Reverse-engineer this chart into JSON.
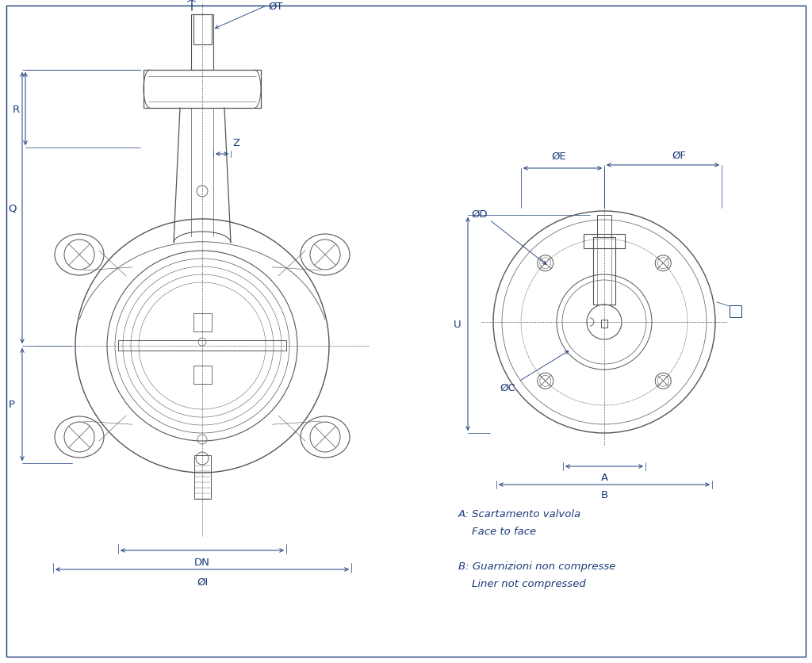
{
  "bg_color": "#ffffff",
  "draw_color": "#1a3a6b",
  "body_edge": "#555555",
  "dim_color": "#1a3a7a",
  "notes": [
    "A: Scartamento valvola",
    "    Face to face",
    "",
    "B: Guarnizioni non compresse",
    "    Liner not compressed"
  ]
}
